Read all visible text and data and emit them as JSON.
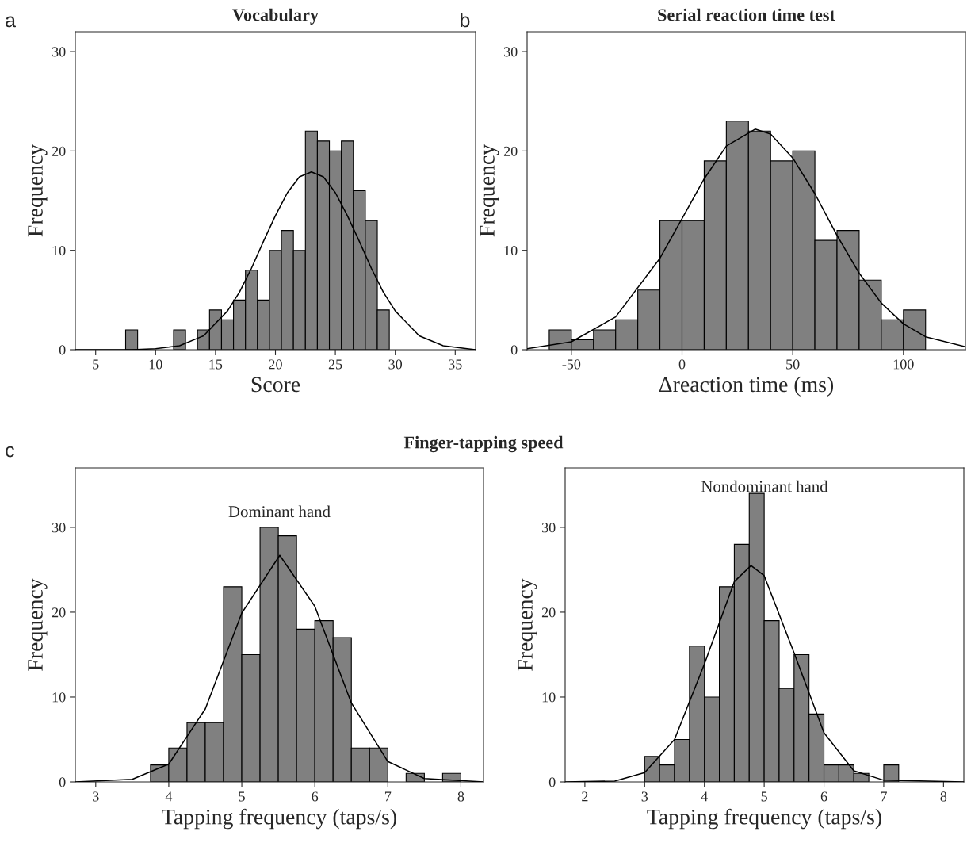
{
  "chart_data": [
    {
      "type": "histogram",
      "title": "Vocabulary",
      "xlabel": "Score",
      "ylabel": "Frequency",
      "annotations": [
        "a"
      ],
      "bins": [
        7.5,
        8.5,
        9.5,
        10.5,
        11.5,
        12.5,
        13.5,
        14.5,
        15.5,
        16.5,
        17.5,
        18.5,
        19.5,
        20.5,
        21.5,
        22.5,
        23.5,
        24.5,
        25.5,
        26.5,
        27.5,
        28.5,
        29.5
      ],
      "values": [
        2,
        0,
        0,
        0,
        2,
        0,
        2,
        4,
        3,
        5,
        8,
        5,
        10,
        12,
        10,
        22,
        21,
        20,
        21,
        16,
        13,
        4
      ],
      "color": "#808080",
      "series": [
        {
          "type": "line",
          "color": "#000000",
          "x": [
            3.3,
            8,
            10,
            12,
            14,
            16,
            17,
            18,
            19,
            20,
            21,
            22,
            23,
            24,
            25,
            26,
            27,
            28,
            29,
            30,
            32,
            34,
            36,
            36.7
          ],
          "values": [
            0,
            0,
            0.1,
            0.4,
            1.4,
            3.9,
            5.8,
            8.2,
            10.9,
            13.5,
            15.8,
            17.4,
            17.9,
            17.4,
            15.8,
            13.5,
            10.9,
            8.2,
            5.8,
            3.9,
            1.4,
            0.4,
            0.1,
            0
          ]
        }
      ],
      "xlim": [
        3.3,
        36.7
      ],
      "xticks": [
        5,
        10,
        15,
        20,
        25,
        30,
        35
      ],
      "ylim": [
        0,
        32
      ],
      "yticks": [
        0,
        10,
        20,
        30
      ],
      "grid": false
    },
    {
      "type": "histogram",
      "title": "Serial reaction time test",
      "xlabel": "Δreaction time (ms)",
      "ylabel": "Frequency",
      "annotations": [
        "b"
      ],
      "bins": [
        -60,
        -50,
        -40,
        -30,
        -20,
        -10,
        0,
        10,
        20,
        30,
        40,
        50,
        60,
        70,
        80,
        90,
        100,
        110
      ],
      "values": [
        2,
        1,
        2,
        3,
        6,
        13,
        13,
        19,
        23,
        22,
        19,
        20,
        11,
        12,
        7,
        3,
        4
      ],
      "color": "#808080",
      "series": [
        {
          "type": "line",
          "color": "#000000",
          "x": [
            -70,
            -50,
            -30,
            -10,
            0,
            10,
            20,
            33,
            40,
            50,
            60,
            70,
            80,
            90,
            100,
            110,
            128
          ],
          "values": [
            0.1,
            0.8,
            3.3,
            9.2,
            13.2,
            17.2,
            20.5,
            22.2,
            21.7,
            19.3,
            15.7,
            11.5,
            7.7,
            4.7,
            2.6,
            1.3,
            0.3
          ]
        }
      ],
      "xlim": [
        -70,
        128
      ],
      "xticks": [
        -50,
        0,
        50,
        100
      ],
      "ylim": [
        0,
        32
      ],
      "yticks": [
        0,
        10,
        20,
        30
      ],
      "grid": false
    },
    {
      "type": "histogram",
      "subtitle": "Dominant hand",
      "xlabel": "Tapping frequency (taps/s)",
      "ylabel": "Frequency",
      "annotations": [
        "c",
        "Finger-tapping speed"
      ],
      "bins": [
        3.75,
        4,
        4.25,
        4.5,
        4.75,
        5,
        5.25,
        5.5,
        5.75,
        6,
        6.25,
        6.5,
        6.75,
        7,
        7.25,
        7.5,
        7.75,
        8
      ],
      "values": [
        2,
        4,
        7,
        7,
        23,
        15,
        30,
        29,
        18,
        19,
        17,
        4,
        4,
        0,
        1,
        0,
        1
      ],
      "color": "#808080",
      "series": [
        {
          "type": "line",
          "color": "#000000",
          "x": [
            2.72,
            3.5,
            4,
            4.5,
            5,
            5.52,
            6,
            6.5,
            7,
            7.5,
            8.31
          ],
          "values": [
            0,
            0.3,
            2.1,
            8.6,
            19.9,
            26.7,
            20.7,
            9.3,
            2.4,
            0.4,
            0
          ]
        }
      ],
      "xlim": [
        2.72,
        8.31
      ],
      "xticks": [
        3,
        4,
        5,
        6,
        7,
        8
      ],
      "ylim": [
        0,
        37
      ],
      "yticks": [
        0,
        10,
        20,
        30
      ],
      "grid": false
    },
    {
      "type": "histogram",
      "subtitle": "Nondominant hand",
      "xlabel": "Tapping frequency (taps/s)",
      "ylabel": "Frequency",
      "bins": [
        3,
        3.25,
        3.5,
        3.75,
        4,
        4.25,
        4.5,
        4.75,
        5,
        5.25,
        5.5,
        5.75,
        6,
        6.25,
        6.5,
        6.75,
        7,
        7.25
      ],
      "values": [
        3,
        2,
        5,
        16,
        10,
        23,
        28,
        34,
        19,
        11,
        15,
        8,
        2,
        2,
        1,
        0,
        2
      ],
      "color": "#808080",
      "series": [
        {
          "type": "line",
          "color": "#000000",
          "x": [
            1.67,
            2.5,
            3,
            3.5,
            4,
            4.5,
            4.78,
            5,
            5.5,
            6,
            6.5,
            7,
            8.34
          ],
          "values": [
            0,
            0.1,
            1.1,
            5,
            13.9,
            23.6,
            25.5,
            24.3,
            15.2,
            5.8,
            1.3,
            0.2,
            0
          ]
        }
      ],
      "xlim": [
        1.67,
        8.34
      ],
      "xticks": [
        2,
        3,
        4,
        5,
        6,
        7,
        8
      ],
      "ylim": [
        0,
        37
      ],
      "yticks": [
        0,
        10,
        20,
        30
      ],
      "grid": false
    }
  ]
}
